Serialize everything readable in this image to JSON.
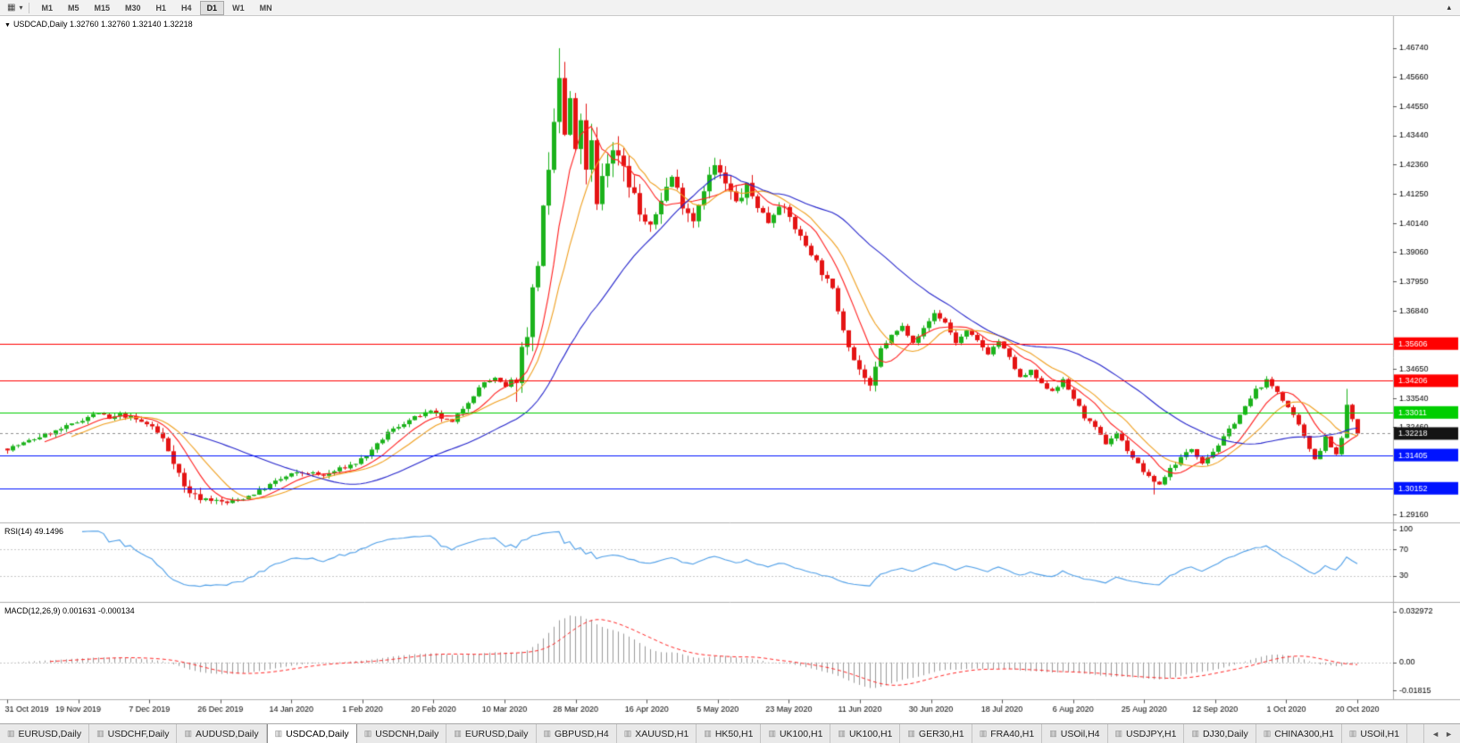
{
  "toolbar": {
    "chart_type_icon": "▦",
    "dropdown_icon": "▾",
    "expand_icon": "▴",
    "timeframes": [
      {
        "label": "M1",
        "active": false
      },
      {
        "label": "M5",
        "active": false
      },
      {
        "label": "M15",
        "active": false
      },
      {
        "label": "M30",
        "active": false
      },
      {
        "label": "H1",
        "active": false
      },
      {
        "label": "H4",
        "active": false
      },
      {
        "label": "D1",
        "active": true
      },
      {
        "label": "W1",
        "active": false
      },
      {
        "label": "MN",
        "active": false
      }
    ]
  },
  "chart_data": {
    "type": "candlestick",
    "symbol": "USDCAD",
    "period": "Daily",
    "header_text": "USDCAD,Daily 1.32760 1.32760 1.32140 1.32218",
    "ohlc": {
      "open": 1.3276,
      "high": 1.3276,
      "low": 1.3214,
      "close": 1.32218
    },
    "up_color": "#1cb21c",
    "down_color": "#e41414",
    "price_axis": {
      "max": 1.4795,
      "min": 1.289,
      "ticks": [
        "1.46740",
        "1.45660",
        "1.44550",
        "1.43440",
        "1.42360",
        "1.41250",
        "1.40140",
        "1.39060",
        "1.37950",
        "1.36840",
        "1.34650",
        "1.33540",
        "1.32460",
        "1.29160"
      ]
    },
    "x_labels": [
      "31 Oct 2019",
      "19 Nov 2019",
      "7 Dec 2019",
      "26 Dec 2019",
      "14 Jan 2020",
      "1 Feb 2020",
      "20 Feb 2020",
      "10 Mar 2020",
      "28 Mar 2020",
      "16 Apr 2020",
      "5 May 2020",
      "23 May 2020",
      "11 Jun 2020",
      "30 Jun 2020",
      "18 Jul 2020",
      "6 Aug 2020",
      "25 Aug 2020",
      "12 Sep 2020",
      "1 Oct 2020",
      "20 Oct 2020"
    ],
    "num_candles": 253,
    "price_path_anchors": [
      [
        0,
        1.3165
      ],
      [
        3,
        1.3185
      ],
      [
        6,
        1.321
      ],
      [
        9,
        1.323
      ],
      [
        12,
        1.3255
      ],
      [
        15,
        1.3285
      ],
      [
        17,
        1.33
      ],
      [
        19,
        1.3275
      ],
      [
        21,
        1.3292
      ],
      [
        23,
        1.3282
      ],
      [
        25,
        1.3265
      ],
      [
        27,
        1.3248
      ],
      [
        29,
        1.32
      ],
      [
        31,
        1.312
      ],
      [
        33,
        1.302
      ],
      [
        35,
        1.2985
      ],
      [
        38,
        1.2972
      ],
      [
        41,
        1.296
      ],
      [
        44,
        1.2978
      ],
      [
        47,
        1.3005
      ],
      [
        50,
        1.304
      ],
      [
        53,
        1.3068
      ],
      [
        56,
        1.3075
      ],
      [
        59,
        1.3062
      ],
      [
        62,
        1.3088
      ],
      [
        65,
        1.311
      ],
      [
        68,
        1.3155
      ],
      [
        71,
        1.3225
      ],
      [
        74,
        1.3262
      ],
      [
        77,
        1.329
      ],
      [
        79,
        1.3302
      ],
      [
        81,
        1.328
      ],
      [
        83,
        1.3262
      ],
      [
        85,
        1.3318
      ],
      [
        87,
        1.3368
      ],
      [
        89,
        1.3415
      ],
      [
        91,
        1.3428
      ],
      [
        93,
        1.3395
      ],
      [
        95,
        1.3445
      ],
      [
        97,
        1.362
      ],
      [
        99,
        1.388
      ],
      [
        100,
        1.405
      ],
      [
        101,
        1.418
      ],
      [
        102,
        1.439
      ],
      [
        103,
        1.456
      ],
      [
        104,
        1.433
      ],
      [
        105,
        1.448
      ],
      [
        106,
        1.426
      ],
      [
        107,
        1.442
      ],
      [
        108,
        1.419
      ],
      [
        109,
        1.431
      ],
      [
        110,
        1.407
      ],
      [
        111,
        1.42
      ],
      [
        112,
        1.426
      ],
      [
        114,
        1.429
      ],
      [
        116,
        1.418
      ],
      [
        118,
        1.405
      ],
      [
        120,
        1.399
      ],
      [
        122,
        1.411
      ],
      [
        124,
        1.419
      ],
      [
        126,
        1.409
      ],
      [
        128,
        1.403
      ],
      [
        130,
        1.415
      ],
      [
        132,
        1.423
      ],
      [
        134,
        1.416
      ],
      [
        136,
        1.409
      ],
      [
        138,
        1.415
      ],
      [
        140,
        1.408
      ],
      [
        142,
        1.402
      ],
      [
        144,
        1.409
      ],
      [
        146,
        1.4035
      ],
      [
        148,
        1.396
      ],
      [
        150,
        1.3905
      ],
      [
        152,
        1.383
      ],
      [
        154,
        1.376
      ],
      [
        156,
        1.362
      ],
      [
        158,
        1.35
      ],
      [
        160,
        1.343
      ],
      [
        161,
        1.339
      ],
      [
        163,
        1.354
      ],
      [
        165,
        1.359
      ],
      [
        167,
        1.3625
      ],
      [
        169,
        1.357
      ],
      [
        171,
        1.3615
      ],
      [
        173,
        1.3675
      ],
      [
        175,
        1.364
      ],
      [
        177,
        1.3565
      ],
      [
        179,
        1.3605
      ],
      [
        181,
        1.357
      ],
      [
        183,
        1.3525
      ],
      [
        185,
        1.357
      ],
      [
        187,
        1.3505
      ],
      [
        189,
        1.343
      ],
      [
        191,
        1.3455
      ],
      [
        193,
        1.3405
      ],
      [
        195,
        1.3385
      ],
      [
        197,
        1.342
      ],
      [
        199,
        1.3355
      ],
      [
        201,
        1.3285
      ],
      [
        203,
        1.324
      ],
      [
        205,
        1.3185
      ],
      [
        207,
        1.3225
      ],
      [
        209,
        1.316
      ],
      [
        211,
        1.3105
      ],
      [
        213,
        1.3055
      ],
      [
        215,
        1.303
      ],
      [
        217,
        1.309
      ],
      [
        219,
        1.313
      ],
      [
        221,
        1.3165
      ],
      [
        223,
        1.3115
      ],
      [
        225,
        1.3155
      ],
      [
        227,
        1.3205
      ],
      [
        229,
        1.3265
      ],
      [
        231,
        1.332
      ],
      [
        233,
        1.3385
      ],
      [
        235,
        1.342
      ],
      [
        237,
        1.338
      ],
      [
        239,
        1.332
      ],
      [
        241,
        1.325
      ],
      [
        243,
        1.3165
      ],
      [
        244,
        1.313
      ],
      [
        245,
        1.316
      ],
      [
        246,
        1.321
      ],
      [
        247,
        1.3175
      ],
      [
        248,
        1.314
      ],
      [
        249,
        1.3205
      ],
      [
        250,
        1.333
      ],
      [
        251,
        1.3276
      ],
      [
        252,
        1.32218
      ]
    ],
    "base_vol": 0.0016,
    "volatility_zones": [
      {
        "from": 29,
        "to": 37,
        "vol": 0.003
      },
      {
        "from": 95,
        "to": 118,
        "vol": 0.009
      },
      {
        "from": 118,
        "to": 140,
        "vol": 0.0045
      },
      {
        "from": 140,
        "to": 163,
        "vol": 0.003
      }
    ],
    "forced_extremes": {
      "highs": {
        "103": 1.4674,
        "250": 1.339
      },
      "lows": {
        "40": 1.2952,
        "214": 1.2992
      }
    },
    "last_candle": {
      "open": 1.3276,
      "high": 1.3276,
      "low": 1.3214,
      "close": 1.32218
    },
    "moving_averages": [
      {
        "type": "sma",
        "period": 8,
        "color": "#ff1f1f"
      },
      {
        "type": "sma",
        "period": 13,
        "color": "#f0a020"
      },
      {
        "type": "sma",
        "period": 34,
        "color": "#2626cc"
      }
    ],
    "hlines": [
      {
        "price": 1.35606,
        "label": "1.35606",
        "color": "#ff0000"
      },
      {
        "price": 1.34206,
        "label": "1.34206",
        "color": "#ff0000"
      },
      {
        "price": 1.33011,
        "label": "1.33011",
        "color": "#00ce00"
      },
      {
        "price": 1.31405,
        "label": "1.31405",
        "color": "#0013ff"
      },
      {
        "price": 1.30152,
        "label": "1.30152",
        "color": "#0013ff"
      }
    ],
    "current_price": {
      "value": 1.32218,
      "label": "1.32218",
      "box_color": "#141414"
    },
    "rsi": {
      "title": "RSI(14) 49.1496",
      "period": 14,
      "value": 49.1496,
      "color": "#4f9fe8",
      "levels": [
        100,
        70,
        30
      ],
      "level_lines": [
        70,
        30
      ]
    },
    "macd": {
      "title": "MACD(12,26,9) 0.001631 -0.000134",
      "fast": 12,
      "slow": 26,
      "signal_period": 9,
      "macd_value": 0.001631,
      "signal_value": -0.000134,
      "hist_color": "#9a9a9a",
      "signal_color": "#ff2a2a",
      "axis": {
        "max": 0.038,
        "min": -0.022,
        "ticks": [
          "0.032972",
          "0.00",
          "-0.01815"
        ]
      }
    }
  },
  "tabs": {
    "tab_icon": "▥",
    "left_arrow": "◄",
    "right_arrow": "►",
    "items": [
      {
        "label": "EURUSD,Daily",
        "active": false
      },
      {
        "label": "USDCHF,Daily",
        "active": false
      },
      {
        "label": "AUDUSD,Daily",
        "active": false
      },
      {
        "label": "USDCAD,Daily",
        "active": true
      },
      {
        "label": "USDCNH,Daily",
        "active": false
      },
      {
        "label": "EURUSD,Daily",
        "active": false
      },
      {
        "label": "GBPUSD,H4",
        "active": false
      },
      {
        "label": "XAUUSD,H1",
        "active": false
      },
      {
        "label": "HK50,H1",
        "active": false
      },
      {
        "label": "UK100,H1",
        "active": false
      },
      {
        "label": "UK100,H1",
        "active": false
      },
      {
        "label": "GER30,H1",
        "active": false
      },
      {
        "label": "FRA40,H1",
        "active": false
      },
      {
        "label": "USOil,H4",
        "active": false
      },
      {
        "label": "USDJPY,H1",
        "active": false
      },
      {
        "label": "DJ30,Daily",
        "active": false
      },
      {
        "label": "CHINA300,H1",
        "active": false
      },
      {
        "label": "USOil,H1",
        "active": false
      }
    ]
  }
}
